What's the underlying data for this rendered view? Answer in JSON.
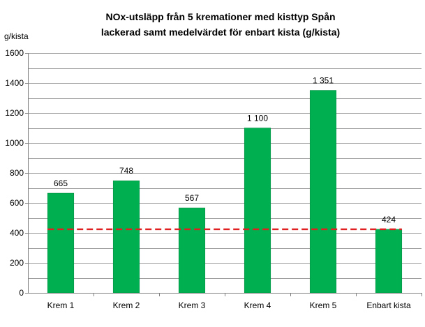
{
  "chart_data": {
    "type": "bar",
    "title_lines": [
      "NOx-utsläpp från 5 kremationer med kisttyp Spån",
      "lackerad samt medelvärdet för enbart kista (g/kista)"
    ],
    "ylabel": "g/kista",
    "xlabel": "",
    "ylim": [
      0,
      1600
    ],
    "y_ticks": [
      "0",
      "200",
      "400",
      "600",
      "800",
      "1000",
      "1200",
      "1400",
      "1600"
    ],
    "grid": true,
    "minor_gridlines_per_major": 2,
    "categories": [
      "Krem 1",
      "Krem 2",
      "Krem 3",
      "Krem 4",
      "Krem 5",
      "Enbart kista"
    ],
    "values": [
      665,
      748,
      567,
      1100,
      1351,
      424
    ],
    "value_labels": [
      "665",
      "748",
      "567",
      "1 100",
      "1 351",
      "424"
    ],
    "reference_line": {
      "value": 424,
      "style": "dashed"
    },
    "colors": {
      "bar": "#00B050",
      "bar_edge": "#00863c",
      "reference_line": "#E02020",
      "grid": "#9a9a9a",
      "axis": "#7f7f7f"
    }
  }
}
